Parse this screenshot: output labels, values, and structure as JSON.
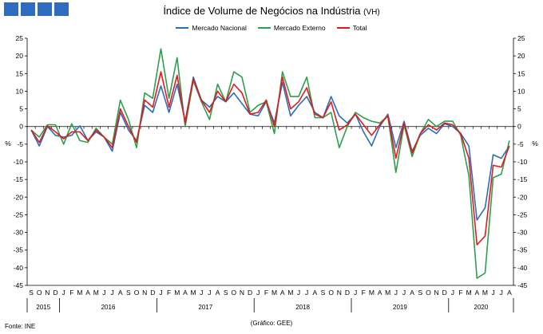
{
  "header": {
    "title": "Índice de Volume de Negócios na Indústria",
    "unit": "(VH)"
  },
  "logo": {
    "color": "#2f6bbf",
    "blocks": 4
  },
  "footer": {
    "source": "Fonte: INE",
    "credit": "(Gráfico: GEE)"
  },
  "chart_data": {
    "type": "line",
    "title": "Índice de Volume de Negócios na Indústria",
    "ylabel": "%",
    "ylim": [
      -45,
      25
    ],
    "ytick_step": 5,
    "grid": false,
    "legend_position": "top-center",
    "month_labels": [
      "S",
      "O",
      "N",
      "D",
      "J",
      "F",
      "M",
      "A",
      "M",
      "J",
      "J",
      "A",
      "S",
      "O",
      "N",
      "D",
      "J",
      "F",
      "M",
      "A",
      "M",
      "J",
      "J",
      "A",
      "S",
      "O",
      "N",
      "D",
      "J",
      "F",
      "M",
      "A",
      "M",
      "J",
      "J",
      "A",
      "S",
      "O",
      "N",
      "D",
      "J",
      "F",
      "M",
      "A",
      "M",
      "J",
      "J",
      "A",
      "S",
      "O",
      "N",
      "D",
      "J",
      "F",
      "M",
      "A",
      "M",
      "J",
      "J",
      "A"
    ],
    "year_labels": [
      {
        "label": "2015",
        "start": 0,
        "count": 4
      },
      {
        "label": "2016",
        "start": 4,
        "count": 12
      },
      {
        "label": "2017",
        "start": 16,
        "count": 12
      },
      {
        "label": "2018",
        "start": 28,
        "count": 12
      },
      {
        "label": "2019",
        "start": 40,
        "count": 12
      },
      {
        "label": "2020",
        "start": 52,
        "count": 8
      }
    ],
    "series": [
      {
        "name": "Mercado Nacional",
        "color": "#2a6ebb",
        "values": [
          -1.0,
          -5.5,
          0.0,
          -2.5,
          -3.0,
          -2.5,
          0.2,
          -4.0,
          -1.5,
          -3.0,
          -7.0,
          4.0,
          -1.0,
          -4.0,
          6.0,
          4.0,
          11.5,
          4.0,
          12.0,
          1.5,
          14.0,
          7.5,
          5.5,
          8.5,
          7.0,
          9.5,
          6.5,
          3.5,
          3.0,
          7.0,
          1.0,
          12.5,
          3.0,
          6.0,
          8.5,
          4.0,
          2.5,
          8.5,
          3.0,
          1.0,
          3.5,
          -1.5,
          -5.5,
          0.0,
          3.5,
          -6.0,
          1.5,
          -7.0,
          -2.5,
          -0.5,
          -2.0,
          0.8,
          0.0,
          -2.0,
          -5.5,
          -26.5,
          -23.0,
          -8.0,
          -9.0,
          -5.5
        ]
      },
      {
        "name": "Mercado Externo",
        "color": "#2e9e4f",
        "values": [
          -1.0,
          -3.0,
          0.5,
          0.5,
          -5.0,
          0.8,
          -4.0,
          -4.5,
          -0.5,
          -3.0,
          -5.0,
          7.5,
          2.0,
          -6.0,
          9.5,
          8.0,
          22.0,
          8.0,
          19.5,
          0.0,
          13.0,
          7.0,
          2.0,
          12.0,
          7.0,
          15.5,
          14.0,
          4.0,
          6.0,
          7.0,
          -2.0,
          15.5,
          8.5,
          8.5,
          14.0,
          2.5,
          2.5,
          4.0,
          -6.0,
          0.0,
          4.0,
          2.5,
          1.5,
          1.0,
          3.0,
          -13.0,
          0.5,
          -8.5,
          -2.0,
          2.0,
          0.0,
          1.5,
          1.5,
          -2.5,
          -14.0,
          -43.0,
          -41.5,
          -14.5,
          -13.5,
          -4.0
        ]
      },
      {
        "name": "Total",
        "color": "#e01b1b",
        "values": [
          -1.0,
          -4.5,
          0.2,
          -1.5,
          -3.5,
          -1.5,
          -1.5,
          -4.0,
          -1.0,
          -3.0,
          -6.0,
          5.0,
          0.0,
          -4.5,
          7.5,
          5.5,
          15.5,
          5.5,
          14.5,
          1.0,
          13.5,
          7.5,
          4.0,
          10.0,
          7.0,
          12.0,
          9.5,
          3.5,
          4.0,
          7.5,
          0.0,
          14.0,
          5.0,
          7.0,
          11.0,
          3.5,
          2.5,
          7.0,
          -1.0,
          0.5,
          3.5,
          0.5,
          -2.5,
          0.5,
          3.0,
          -9.0,
          1.0,
          -7.5,
          -2.0,
          0.5,
          -1.0,
          1.0,
          0.5,
          -2.0,
          -9.0,
          -33.5,
          -31.0,
          -11.0,
          -11.5,
          -5.5
        ]
      }
    ]
  }
}
